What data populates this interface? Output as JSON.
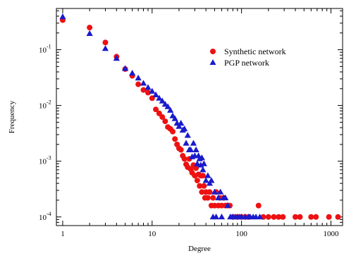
{
  "chart_data": {
    "type": "scatter",
    "title": "",
    "xlabel": "Degree",
    "ylabel": "Frequency",
    "xscale": "log",
    "yscale": "log",
    "xlim": [
      0.85,
      1350
    ],
    "ylim": [
      7e-05,
      0.55
    ],
    "grid": false,
    "legend_position": "top-right",
    "x_ticks": [
      {
        "value": 1,
        "label": "1"
      },
      {
        "value": 10,
        "label": "10"
      },
      {
        "value": 100,
        "label": "100"
      },
      {
        "value": 1000,
        "label": "1000"
      }
    ],
    "y_ticks": [
      {
        "value": 0.1,
        "base": "10",
        "exp": "-1"
      },
      {
        "value": 0.01,
        "base": "10",
        "exp": "-2"
      },
      {
        "value": 0.001,
        "base": "10",
        "exp": "-3"
      },
      {
        "value": 0.0001,
        "base": "10",
        "exp": "-4"
      }
    ],
    "series": [
      {
        "name": "Synthetic network",
        "marker": "circle",
        "color": "#ee1111",
        "points": [
          [
            1,
            0.34
          ],
          [
            2,
            0.25
          ],
          [
            3,
            0.135
          ],
          [
            4,
            0.075
          ],
          [
            5,
            0.045
          ],
          [
            6,
            0.034
          ],
          [
            7,
            0.024
          ],
          [
            8,
            0.019
          ],
          [
            9,
            0.017
          ],
          [
            10,
            0.0135
          ],
          [
            11,
            0.0085
          ],
          [
            12,
            0.0072
          ],
          [
            13,
            0.0062
          ],
          [
            14,
            0.0052
          ],
          [
            15,
            0.0041
          ],
          [
            16,
            0.0038
          ],
          [
            17,
            0.0034
          ],
          [
            18,
            0.0025
          ],
          [
            19,
            0.002
          ],
          [
            20,
            0.0017
          ],
          [
            21,
            0.0016
          ],
          [
            22,
            0.00125
          ],
          [
            23,
            0.0011
          ],
          [
            24,
            0.00088
          ],
          [
            25,
            0.00078
          ],
          [
            26,
            0.0011
          ],
          [
            27,
            0.00072
          ],
          [
            28,
            0.00062
          ],
          [
            29,
            0.00085
          ],
          [
            30,
            0.00055
          ],
          [
            31,
            0.00075
          ],
          [
            32,
            0.00045
          ],
          [
            33,
            0.00058
          ],
          [
            34,
            0.00036
          ],
          [
            35,
            0.00055
          ],
          [
            36,
            0.00028
          ],
          [
            37,
            0.00055
          ],
          [
            38,
            0.00036
          ],
          [
            39,
            0.00022
          ],
          [
            40,
            0.00028
          ],
          [
            42,
            0.00022
          ],
          [
            44,
            0.00028
          ],
          [
            46,
            0.00016
          ],
          [
            48,
            0.00022
          ],
          [
            50,
            0.00016
          ],
          [
            52,
            0.00028
          ],
          [
            55,
            0.00016
          ],
          [
            57,
            0.00022
          ],
          [
            60,
            0.00016
          ],
          [
            63,
            0.00022
          ],
          [
            66,
            0.00016
          ],
          [
            70,
            0.00016
          ],
          [
            74,
            0.00016
          ],
          [
            80,
            0.0001
          ],
          [
            90,
            0.0001
          ],
          [
            100,
            0.0001
          ],
          [
            110,
            0.0001
          ],
          [
            120,
            0.0001
          ],
          [
            155,
            0.00016
          ],
          [
            175,
            0.0001
          ],
          [
            200,
            0.0001
          ],
          [
            230,
            0.0001
          ],
          [
            260,
            0.0001
          ],
          [
            290,
            0.0001
          ],
          [
            400,
            0.0001
          ],
          [
            450,
            0.0001
          ],
          [
            600,
            0.0001
          ],
          [
            680,
            0.0001
          ],
          [
            950,
            0.0001
          ],
          [
            1200,
            0.0001
          ]
        ]
      },
      {
        "name": "PGP network",
        "marker": "triangle",
        "color": "#1a1acc",
        "points": [
          [
            1,
            0.39
          ],
          [
            2,
            0.195
          ],
          [
            3,
            0.105
          ],
          [
            4,
            0.07
          ],
          [
            5,
            0.046
          ],
          [
            6,
            0.038
          ],
          [
            7,
            0.031
          ],
          [
            8,
            0.025
          ],
          [
            9,
            0.021
          ],
          [
            10,
            0.018
          ],
          [
            11,
            0.0155
          ],
          [
            12,
            0.0135
          ],
          [
            13,
            0.012
          ],
          [
            14,
            0.0105
          ],
          [
            15,
            0.0095
          ],
          [
            16,
            0.0082
          ],
          [
            17,
            0.0065
          ],
          [
            18,
            0.0058
          ],
          [
            19,
            0.0048
          ],
          [
            20,
            0.0042
          ],
          [
            21,
            0.0048
          ],
          [
            22,
            0.0036
          ],
          [
            23,
            0.0038
          ],
          [
            24,
            0.0021
          ],
          [
            25,
            0.0029
          ],
          [
            26,
            0.0016
          ],
          [
            27,
            0.0016
          ],
          [
            28,
            0.0012
          ],
          [
            29,
            0.0021
          ],
          [
            30,
            0.00125
          ],
          [
            31,
            0.0016
          ],
          [
            32,
            0.0009
          ],
          [
            33,
            0.00125
          ],
          [
            34,
            0.0011
          ],
          [
            35,
            0.00085
          ],
          [
            36,
            0.00115
          ],
          [
            37,
            0.0007
          ],
          [
            38,
            0.0009
          ],
          [
            40,
            0.00045
          ],
          [
            42,
            0.00055
          ],
          [
            44,
            0.0004
          ],
          [
            46,
            0.00045
          ],
          [
            48,
            0.0001
          ],
          [
            50,
            0.00028
          ],
          [
            52,
            0.0001
          ],
          [
            55,
            0.00022
          ],
          [
            58,
            0.00028
          ],
          [
            60,
            0.0001
          ],
          [
            63,
            0.00022
          ],
          [
            66,
            0.00022
          ],
          [
            70,
            0.00016
          ],
          [
            75,
            0.0001
          ],
          [
            80,
            0.0001
          ],
          [
            85,
            0.0001
          ],
          [
            90,
            0.0001
          ],
          [
            95,
            0.0001
          ],
          [
            100,
            0.0001
          ],
          [
            110,
            0.0001
          ],
          [
            120,
            0.0001
          ],
          [
            125,
            0.0001
          ],
          [
            135,
            0.0001
          ],
          [
            145,
            0.0001
          ],
          [
            160,
            0.0001
          ]
        ]
      }
    ]
  }
}
